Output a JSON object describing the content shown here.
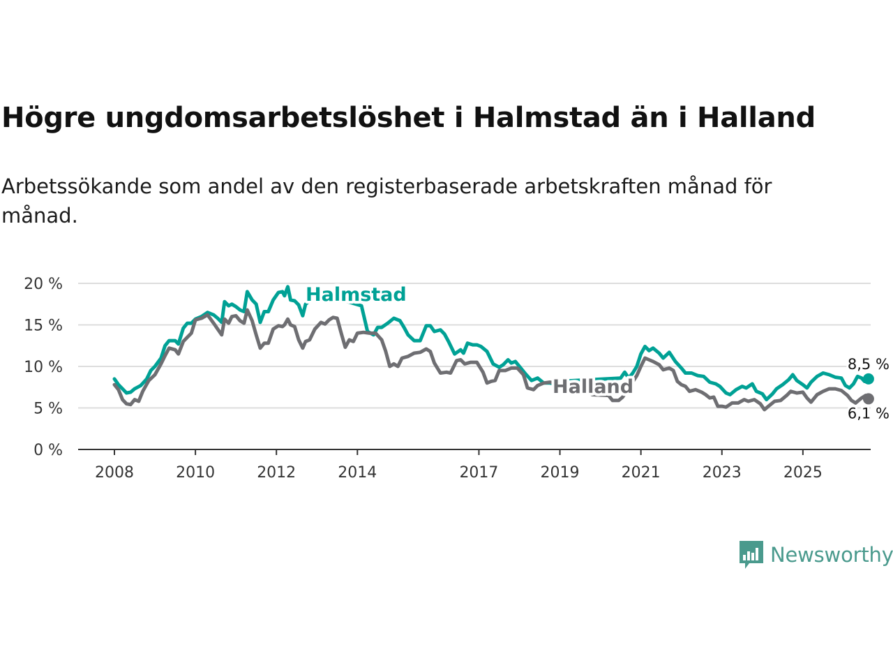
{
  "header": {
    "title": "Högre ungdomsarbetslöshet i Halmstad än i Halland",
    "subtitle": "Arbetssökande som andel av den registerbaserade arbetskraften månad för månad."
  },
  "brand": {
    "name": "Newsworthy",
    "color": "#4a9a8d"
  },
  "colors": {
    "halmstad": "#00a195",
    "halland": "#6e6e72",
    "grid": "#dddddd",
    "axis": "#333333"
  },
  "chart_data": {
    "type": "line",
    "title": "Högre ungdomsarbetslöshet i Halmstad än i Halland",
    "xlabel": "",
    "ylabel": "",
    "ylim": [
      0,
      20
    ],
    "xlim": [
      2007.7,
      2026.5
    ],
    "y_ticks": [
      0,
      5,
      10,
      15,
      20
    ],
    "y_tick_labels": [
      "0 %",
      "5 %",
      "10 %",
      "15 %",
      "20 %"
    ],
    "x_ticks": [
      2008,
      2010,
      2012,
      2014,
      2017,
      2019,
      2021,
      2023,
      2025
    ],
    "x_tick_labels": [
      "2008",
      "2010",
      "2012",
      "2014",
      "2017",
      "2019",
      "2021",
      "2023",
      "2025"
    ],
    "grid": true,
    "series": [
      {
        "name": "Halmstad",
        "color": "#00a195",
        "end_label": "8,5 %",
        "points": [
          [
            2008.0,
            8.5
          ],
          [
            2008.1,
            7.8
          ],
          [
            2008.2,
            7.3
          ],
          [
            2008.3,
            6.8
          ],
          [
            2008.4,
            6.9
          ],
          [
            2008.5,
            7.3
          ],
          [
            2008.65,
            7.7
          ],
          [
            2008.8,
            8.5
          ],
          [
            2008.9,
            9.5
          ],
          [
            2009.0,
            10.0
          ],
          [
            2009.15,
            11.0
          ],
          [
            2009.25,
            12.5
          ],
          [
            2009.35,
            13.1
          ],
          [
            2009.5,
            13.1
          ],
          [
            2009.58,
            12.7
          ],
          [
            2009.7,
            14.6
          ],
          [
            2009.8,
            15.2
          ],
          [
            2009.9,
            15.2
          ],
          [
            2010.0,
            15.7
          ],
          [
            2010.15,
            16.0
          ],
          [
            2010.3,
            16.5
          ],
          [
            2010.45,
            16.2
          ],
          [
            2010.55,
            15.8
          ],
          [
            2010.65,
            15.3
          ],
          [
            2010.72,
            17.8
          ],
          [
            2010.82,
            17.3
          ],
          [
            2010.9,
            17.5
          ],
          [
            2011.0,
            17.2
          ],
          [
            2011.1,
            16.8
          ],
          [
            2011.2,
            16.6
          ],
          [
            2011.28,
            19.0
          ],
          [
            2011.4,
            18.0
          ],
          [
            2011.5,
            17.5
          ],
          [
            2011.6,
            15.3
          ],
          [
            2011.7,
            16.6
          ],
          [
            2011.8,
            16.6
          ],
          [
            2011.92,
            18.0
          ],
          [
            2012.05,
            18.9
          ],
          [
            2012.15,
            19.0
          ],
          [
            2012.2,
            18.5
          ],
          [
            2012.28,
            19.6
          ],
          [
            2012.35,
            18.0
          ],
          [
            2012.45,
            17.9
          ],
          [
            2012.55,
            17.4
          ],
          [
            2012.65,
            16.1
          ],
          [
            2012.72,
            17.5
          ],
          [
            2012.82,
            17.9
          ],
          [
            2012.95,
            18.2
          ],
          [
            2013.05,
            18.8
          ],
          [
            2014.1,
            17.3
          ],
          [
            2014.25,
            14.2
          ],
          [
            2014.4,
            13.8
          ],
          [
            2014.5,
            14.7
          ],
          [
            2014.6,
            14.7
          ],
          [
            2014.75,
            15.2
          ],
          [
            2014.9,
            15.8
          ],
          [
            2015.05,
            15.5
          ],
          [
            2015.15,
            14.7
          ],
          [
            2015.25,
            13.8
          ],
          [
            2015.4,
            13.1
          ],
          [
            2015.55,
            13.1
          ],
          [
            2015.7,
            14.9
          ],
          [
            2015.8,
            14.9
          ],
          [
            2015.9,
            14.2
          ],
          [
            2016.05,
            14.4
          ],
          [
            2016.15,
            13.9
          ],
          [
            2016.25,
            13.0
          ],
          [
            2016.4,
            11.5
          ],
          [
            2016.55,
            12.0
          ],
          [
            2016.62,
            11.6
          ],
          [
            2016.72,
            12.8
          ],
          [
            2016.85,
            12.6
          ],
          [
            2016.95,
            12.6
          ],
          [
            2017.05,
            12.4
          ],
          [
            2017.2,
            11.8
          ],
          [
            2017.35,
            10.3
          ],
          [
            2017.5,
            9.9
          ],
          [
            2017.6,
            10.2
          ],
          [
            2017.72,
            10.8
          ],
          [
            2017.8,
            10.4
          ],
          [
            2017.9,
            10.6
          ],
          [
            2018.05,
            9.7
          ],
          [
            2018.15,
            9.1
          ],
          [
            2018.3,
            8.3
          ],
          [
            2018.45,
            8.6
          ],
          [
            2018.6,
            8.0
          ],
          [
            2018.75,
            8.0
          ],
          [
            2018.88,
            7.9
          ],
          [
            2019.0,
            8.2
          ],
          [
            2020.5,
            8.6
          ],
          [
            2020.6,
            9.3
          ],
          [
            2020.7,
            8.6
          ],
          [
            2020.8,
            9.2
          ],
          [
            2020.9,
            10.0
          ],
          [
            2021.0,
            11.5
          ],
          [
            2021.1,
            12.4
          ],
          [
            2021.2,
            11.9
          ],
          [
            2021.3,
            12.2
          ],
          [
            2021.45,
            11.6
          ],
          [
            2021.55,
            11.0
          ],
          [
            2021.7,
            11.7
          ],
          [
            2021.85,
            10.6
          ],
          [
            2022.0,
            9.8
          ],
          [
            2022.1,
            9.2
          ],
          [
            2022.25,
            9.2
          ],
          [
            2022.4,
            8.9
          ],
          [
            2022.55,
            8.8
          ],
          [
            2022.7,
            8.1
          ],
          [
            2022.85,
            7.9
          ],
          [
            2022.95,
            7.6
          ],
          [
            2023.1,
            6.8
          ],
          [
            2023.2,
            6.6
          ],
          [
            2023.35,
            7.2
          ],
          [
            2023.5,
            7.6
          ],
          [
            2023.6,
            7.4
          ],
          [
            2023.75,
            7.9
          ],
          [
            2023.85,
            7.0
          ],
          [
            2024.0,
            6.7
          ],
          [
            2024.1,
            6.0
          ],
          [
            2024.25,
            6.7
          ],
          [
            2024.35,
            7.3
          ],
          [
            2024.5,
            7.8
          ],
          [
            2024.65,
            8.4
          ],
          [
            2024.75,
            9.0
          ],
          [
            2024.85,
            8.3
          ],
          [
            2025.0,
            7.8
          ],
          [
            2025.1,
            7.4
          ],
          [
            2025.2,
            8.1
          ],
          [
            2025.35,
            8.8
          ],
          [
            2025.5,
            9.2
          ],
          [
            2025.65,
            9.0
          ],
          [
            2025.8,
            8.7
          ],
          [
            2025.95,
            8.6
          ],
          [
            2026.05,
            7.7
          ],
          [
            2026.15,
            7.4
          ],
          [
            2026.25,
            7.9
          ],
          [
            2026.35,
            8.8
          ],
          [
            2026.45,
            8.6
          ],
          [
            2026.52,
            8.2
          ],
          [
            2026.62,
            8.5
          ]
        ]
      },
      {
        "name": "Halland",
        "color": "#6e6e72",
        "end_label": "6,1 %",
        "points": [
          [
            2008.0,
            7.8
          ],
          [
            2008.1,
            7.2
          ],
          [
            2008.2,
            6.0
          ],
          [
            2008.3,
            5.5
          ],
          [
            2008.4,
            5.4
          ],
          [
            2008.5,
            6.0
          ],
          [
            2008.6,
            5.8
          ],
          [
            2008.7,
            7.0
          ],
          [
            2008.85,
            8.3
          ],
          [
            2009.0,
            9.0
          ],
          [
            2009.15,
            10.3
          ],
          [
            2009.25,
            11.3
          ],
          [
            2009.35,
            12.2
          ],
          [
            2009.5,
            12.0
          ],
          [
            2009.58,
            11.5
          ],
          [
            2009.7,
            13.0
          ],
          [
            2009.8,
            13.5
          ],
          [
            2009.9,
            14.0
          ],
          [
            2010.0,
            15.6
          ],
          [
            2010.15,
            15.8
          ],
          [
            2010.3,
            16.2
          ],
          [
            2010.45,
            15.2
          ],
          [
            2010.55,
            14.5
          ],
          [
            2010.65,
            13.8
          ],
          [
            2010.72,
            15.7
          ],
          [
            2010.82,
            15.2
          ],
          [
            2010.9,
            16.0
          ],
          [
            2011.0,
            16.1
          ],
          [
            2011.1,
            15.5
          ],
          [
            2011.2,
            15.2
          ],
          [
            2011.28,
            16.8
          ],
          [
            2011.4,
            15.5
          ],
          [
            2011.5,
            13.8
          ],
          [
            2011.6,
            12.2
          ],
          [
            2011.7,
            12.8
          ],
          [
            2011.8,
            12.8
          ],
          [
            2011.92,
            14.5
          ],
          [
            2012.05,
            14.9
          ],
          [
            2012.15,
            14.8
          ],
          [
            2012.2,
            15.0
          ],
          [
            2012.28,
            15.7
          ],
          [
            2012.35,
            15.0
          ],
          [
            2012.45,
            14.8
          ],
          [
            2012.55,
            13.2
          ],
          [
            2012.65,
            12.2
          ],
          [
            2012.72,
            13.0
          ],
          [
            2012.82,
            13.2
          ],
          [
            2012.95,
            14.5
          ],
          [
            2013.1,
            15.3
          ],
          [
            2013.2,
            15.1
          ],
          [
            2013.3,
            15.6
          ],
          [
            2013.4,
            15.9
          ],
          [
            2013.5,
            15.8
          ],
          [
            2013.6,
            14.0
          ],
          [
            2013.7,
            12.3
          ],
          [
            2013.8,
            13.2
          ],
          [
            2013.9,
            13.0
          ],
          [
            2014.0,
            14.0
          ],
          [
            2014.15,
            14.1
          ],
          [
            2014.3,
            14.0
          ],
          [
            2014.45,
            14.0
          ],
          [
            2014.6,
            13.2
          ],
          [
            2014.7,
            11.8
          ],
          [
            2014.8,
            10.0
          ],
          [
            2014.9,
            10.3
          ],
          [
            2015.0,
            10.0
          ],
          [
            2015.1,
            11.0
          ],
          [
            2015.25,
            11.2
          ],
          [
            2015.4,
            11.6
          ],
          [
            2015.55,
            11.7
          ],
          [
            2015.7,
            12.1
          ],
          [
            2015.8,
            11.8
          ],
          [
            2015.9,
            10.4
          ],
          [
            2016.05,
            9.2
          ],
          [
            2016.2,
            9.3
          ],
          [
            2016.3,
            9.2
          ],
          [
            2016.45,
            10.7
          ],
          [
            2016.55,
            10.8
          ],
          [
            2016.65,
            10.3
          ],
          [
            2016.8,
            10.5
          ],
          [
            2016.95,
            10.5
          ],
          [
            2017.1,
            9.3
          ],
          [
            2017.2,
            8.0
          ],
          [
            2017.3,
            8.2
          ],
          [
            2017.4,
            8.3
          ],
          [
            2017.5,
            9.5
          ],
          [
            2017.65,
            9.5
          ],
          [
            2017.8,
            9.8
          ],
          [
            2017.95,
            9.8
          ],
          [
            2018.1,
            9.0
          ],
          [
            2018.2,
            7.4
          ],
          [
            2018.35,
            7.2
          ],
          [
            2018.45,
            7.7
          ],
          [
            2018.6,
            8.0
          ],
          [
            2018.75,
            8.1
          ],
          [
            2018.9,
            8.0
          ],
          [
            2019.05,
            8.0
          ],
          [
            2019.2,
            7.5
          ],
          [
            2019.3,
            7.0
          ],
          [
            2019.45,
            6.8
          ],
          [
            2019.55,
            7.1
          ],
          [
            2019.7,
            6.9
          ],
          [
            2019.8,
            6.6
          ],
          [
            2020.2,
            6.5
          ],
          [
            2020.3,
            5.9
          ],
          [
            2020.45,
            5.9
          ],
          [
            2020.55,
            6.3
          ],
          [
            2020.9,
            8.9
          ],
          [
            2021.0,
            10.0
          ],
          [
            2021.1,
            11.0
          ],
          [
            2021.2,
            10.8
          ],
          [
            2021.3,
            10.6
          ],
          [
            2021.45,
            10.2
          ],
          [
            2021.55,
            9.6
          ],
          [
            2021.7,
            9.8
          ],
          [
            2021.8,
            9.5
          ],
          [
            2021.9,
            8.2
          ],
          [
            2022.0,
            7.8
          ],
          [
            2022.1,
            7.6
          ],
          [
            2022.2,
            7.0
          ],
          [
            2022.35,
            7.2
          ],
          [
            2022.5,
            6.9
          ],
          [
            2022.6,
            6.6
          ],
          [
            2022.7,
            6.2
          ],
          [
            2022.8,
            6.3
          ],
          [
            2022.9,
            5.2
          ],
          [
            2023.0,
            5.2
          ],
          [
            2023.1,
            5.1
          ],
          [
            2023.25,
            5.6
          ],
          [
            2023.4,
            5.6
          ],
          [
            2023.55,
            6.0
          ],
          [
            2023.65,
            5.8
          ],
          [
            2023.8,
            6.0
          ],
          [
            2023.95,
            5.5
          ],
          [
            2024.05,
            4.8
          ],
          [
            2024.15,
            5.2
          ],
          [
            2024.3,
            5.8
          ],
          [
            2024.45,
            5.9
          ],
          [
            2024.6,
            6.5
          ],
          [
            2024.7,
            7.0
          ],
          [
            2024.85,
            6.8
          ],
          [
            2025.0,
            6.9
          ],
          [
            2025.1,
            6.2
          ],
          [
            2025.2,
            5.7
          ],
          [
            2025.35,
            6.6
          ],
          [
            2025.5,
            7.0
          ],
          [
            2025.65,
            7.3
          ],
          [
            2025.8,
            7.3
          ],
          [
            2025.95,
            7.1
          ],
          [
            2026.1,
            6.5
          ],
          [
            2026.2,
            5.9
          ],
          [
            2026.3,
            5.6
          ],
          [
            2026.45,
            6.2
          ],
          [
            2026.55,
            6.5
          ],
          [
            2026.62,
            6.1
          ]
        ]
      }
    ]
  }
}
